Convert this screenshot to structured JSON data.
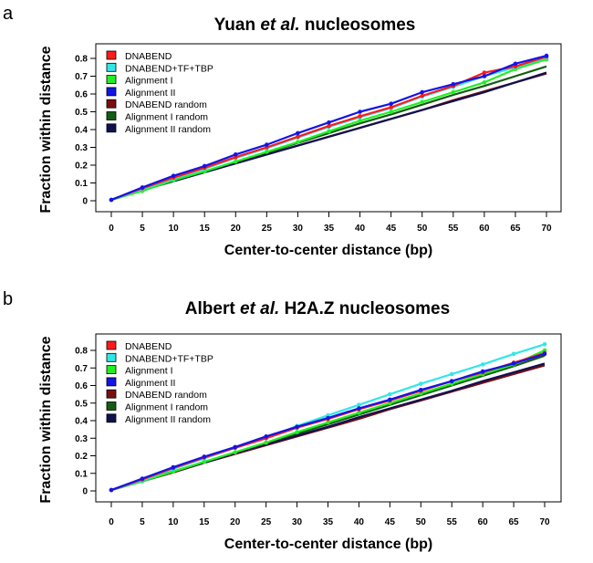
{
  "chart_data": [
    {
      "type": "line",
      "panel": "a",
      "title_pre": "Yuan ",
      "title_em": "et al.",
      "title_post": " nucleosomes",
      "xlabel": "Center-to-center distance (bp)",
      "ylabel": "Fraction within distance",
      "x": [
        0,
        5,
        10,
        15,
        20,
        25,
        30,
        35,
        40,
        45,
        50,
        55,
        60,
        65,
        70
      ],
      "xlim": [
        0,
        70
      ],
      "ylim": [
        0,
        0.8
      ],
      "yticks": [
        0,
        0.1,
        0.2,
        0.3,
        0.4,
        0.5,
        0.6,
        0.7,
        0.8
      ],
      "ytick_labels": [
        "0",
        "0.1",
        "0.2",
        "0.3",
        "0.4",
        "0.5",
        "0.6",
        "0.7",
        "0.8"
      ],
      "xtick_labels": [
        "0",
        "5",
        "10",
        "15",
        "20",
        "25",
        "30",
        "35",
        "40",
        "45",
        "50",
        "55",
        "60",
        "65",
        "70"
      ],
      "legend_position": "top-left",
      "series": [
        {
          "name": "DNABEND",
          "color": "#ff1a1a",
          "markers": true,
          "values": [
            0.005,
            0.07,
            0.13,
            0.185,
            0.245,
            0.3,
            0.36,
            0.42,
            0.475,
            0.525,
            0.59,
            0.645,
            0.72,
            0.755,
            0.81
          ]
        },
        {
          "name": "DNABEND+TF+TBP",
          "color": "#33e6e6",
          "markers": true,
          "values": [
            0.005,
            0.065,
            0.125,
            0.18,
            0.24,
            0.295,
            0.355,
            0.415,
            0.47,
            0.52,
            0.585,
            0.64,
            0.7,
            0.75,
            0.805
          ]
        },
        {
          "name": "Alignment I",
          "color": "#22ee22",
          "markers": true,
          "values": [
            0.005,
            0.055,
            0.115,
            0.165,
            0.22,
            0.275,
            0.33,
            0.39,
            0.45,
            0.5,
            0.555,
            0.61,
            0.665,
            0.74,
            0.795
          ]
        },
        {
          "name": "Alignment II",
          "color": "#1414e6",
          "markers": true,
          "values": [
            0.005,
            0.075,
            0.14,
            0.195,
            0.26,
            0.315,
            0.38,
            0.44,
            0.5,
            0.545,
            0.61,
            0.655,
            0.7,
            0.77,
            0.815
          ]
        },
        {
          "name": "DNABEND random",
          "color": "#7a0f0f",
          "markers": false,
          "values": [
            0.005,
            0.06,
            0.11,
            0.16,
            0.21,
            0.26,
            0.31,
            0.36,
            0.41,
            0.46,
            0.51,
            0.565,
            0.615,
            0.665,
            0.715
          ]
        },
        {
          "name": "Alignment I random",
          "color": "#135c13",
          "markers": false,
          "values": [
            0.005,
            0.06,
            0.115,
            0.165,
            0.215,
            0.27,
            0.325,
            0.38,
            0.435,
            0.485,
            0.54,
            0.595,
            0.645,
            0.7,
            0.755
          ]
        },
        {
          "name": "Alignment II random",
          "color": "#101050",
          "markers": false,
          "values": [
            0.005,
            0.06,
            0.11,
            0.16,
            0.21,
            0.26,
            0.31,
            0.36,
            0.41,
            0.46,
            0.51,
            0.56,
            0.61,
            0.665,
            0.72
          ]
        }
      ]
    },
    {
      "type": "line",
      "panel": "b",
      "title_pre": "Albert ",
      "title_em": "et al.",
      "title_post": " H2A.Z nucleosomes",
      "xlabel": "Center-to-center distance (bp)",
      "ylabel": "Fraction within distance",
      "x": [
        0,
        5,
        10,
        15,
        20,
        25,
        30,
        35,
        40,
        45,
        50,
        55,
        60,
        65,
        70
      ],
      "xlim": [
        0,
        70
      ],
      "ylim": [
        0,
        0.8
      ],
      "yticks": [
        0,
        0.1,
        0.2,
        0.3,
        0.4,
        0.5,
        0.6,
        0.7,
        0.8
      ],
      "ytick_labels": [
        "0",
        "0.1",
        "0.2",
        "0.3",
        "0.4",
        "0.5",
        "0.6",
        "0.7",
        "0.8"
      ],
      "xtick_labels": [
        "0",
        "5",
        "10",
        "15",
        "20",
        "25",
        "30",
        "35",
        "40",
        "45",
        "50",
        "55",
        "60",
        "65",
        "70"
      ],
      "legend_position": "top-left",
      "series": [
        {
          "name": "DNABEND",
          "color": "#ff1a1a",
          "markers": true,
          "values": [
            0.005,
            0.065,
            0.13,
            0.19,
            0.245,
            0.3,
            0.36,
            0.41,
            0.465,
            0.515,
            0.57,
            0.625,
            0.675,
            0.73,
            0.785
          ]
        },
        {
          "name": "DNABEND+TF+TBP",
          "color": "#33e6e6",
          "markers": true,
          "values": [
            0.005,
            0.06,
            0.125,
            0.185,
            0.245,
            0.3,
            0.37,
            0.43,
            0.49,
            0.55,
            0.61,
            0.665,
            0.72,
            0.78,
            0.835
          ]
        },
        {
          "name": "Alignment I",
          "color": "#22ee22",
          "markers": true,
          "values": [
            0.005,
            0.055,
            0.11,
            0.165,
            0.22,
            0.275,
            0.335,
            0.39,
            0.445,
            0.5,
            0.555,
            0.61,
            0.665,
            0.72,
            0.8
          ]
        },
        {
          "name": "Alignment II",
          "color": "#1414e6",
          "markers": true,
          "values": [
            0.005,
            0.07,
            0.135,
            0.195,
            0.25,
            0.31,
            0.365,
            0.415,
            0.47,
            0.52,
            0.575,
            0.625,
            0.68,
            0.725,
            0.78
          ]
        },
        {
          "name": "DNABEND random",
          "color": "#7a0f0f",
          "markers": false,
          "values": [
            0.005,
            0.055,
            0.105,
            0.16,
            0.21,
            0.26,
            0.31,
            0.36,
            0.41,
            0.465,
            0.515,
            0.565,
            0.615,
            0.665,
            0.715
          ]
        },
        {
          "name": "Alignment I random",
          "color": "#135c13",
          "markers": false,
          "values": [
            0.005,
            0.06,
            0.11,
            0.165,
            0.215,
            0.27,
            0.325,
            0.38,
            0.435,
            0.49,
            0.545,
            0.6,
            0.655,
            0.71,
            0.77
          ]
        },
        {
          "name": "Alignment II random",
          "color": "#101050",
          "markers": false,
          "values": [
            0.005,
            0.055,
            0.11,
            0.16,
            0.215,
            0.265,
            0.315,
            0.365,
            0.42,
            0.47,
            0.52,
            0.57,
            0.625,
            0.675,
            0.725
          ]
        }
      ]
    }
  ]
}
